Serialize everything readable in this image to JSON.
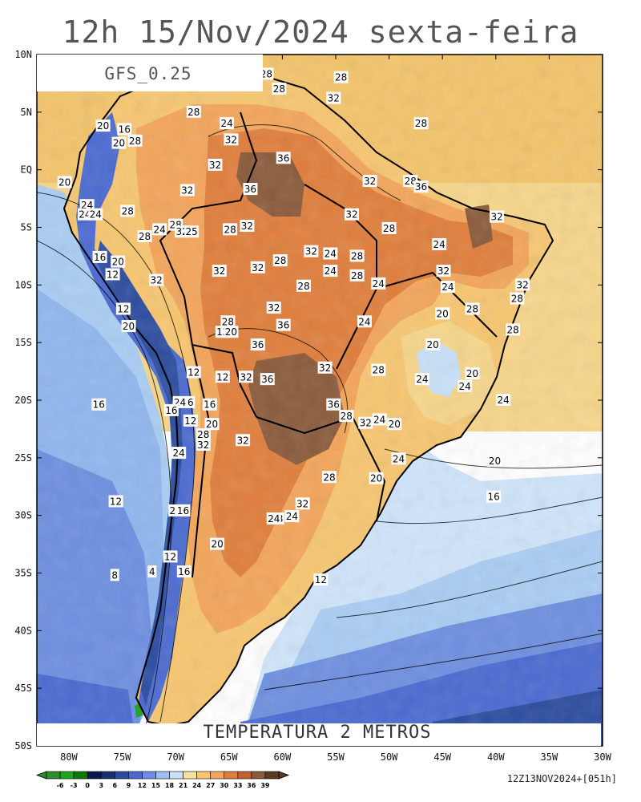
{
  "title": "12h 15/Nov/2024 sexta-feira",
  "model_label": "GFS_0.25",
  "variable_label": "TEMPERATURA 2 METROS",
  "run_label": "12Z13NOV2024+[051h]",
  "lat_ticks": [
    "10N",
    "5N",
    "EQ",
    "5S",
    "10S",
    "15S",
    "20S",
    "25S",
    "30S",
    "35S",
    "40S",
    "45S",
    "50S"
  ],
  "lon_ticks": [
    "80W",
    "75W",
    "70W",
    "65W",
    "60W",
    "55W",
    "50W",
    "45W",
    "40W",
    "35W",
    "30W"
  ],
  "colorbar": {
    "values": [
      "-6",
      "-3",
      "0",
      "3",
      "6",
      "9",
      "12",
      "15",
      "18",
      "21",
      "24",
      "27",
      "30",
      "33",
      "36",
      "39"
    ],
    "colors": [
      "#2e8b2e",
      "#1fa21f",
      "#0b7a0b",
      "#0a1a50",
      "#16306e",
      "#2b4c9e",
      "#4a6ad0",
      "#6f8ee6",
      "#9cc0f2",
      "#c8e0f8",
      "#f7e0a0",
      "#f7c670",
      "#f3a55a",
      "#e07e3c",
      "#c0622e",
      "#8a5a3a",
      "#5a3a20"
    ]
  },
  "contour_labels": [
    {
      "t": "28",
      "lon": -61.5,
      "lat": 8.3
    },
    {
      "t": "28",
      "lon": -54.5,
      "lat": 8.0
    },
    {
      "t": "28",
      "lon": -60.3,
      "lat": 7.0
    },
    {
      "t": "32",
      "lon": -55.2,
      "lat": 6.2
    },
    {
      "t": "28",
      "lon": -68.3,
      "lat": 5.0
    },
    {
      "t": "24",
      "lon": -65.2,
      "lat": 4.0
    },
    {
      "t": "20",
      "lon": -76.8,
      "lat": 3.8
    },
    {
      "t": "16",
      "lon": -74.8,
      "lat": 3.5
    },
    {
      "t": "20",
      "lon": -75.3,
      "lat": 2.3
    },
    {
      "t": "28",
      "lon": -73.8,
      "lat": 2.5
    },
    {
      "t": "32",
      "lon": -64.8,
      "lat": 2.6
    },
    {
      "t": "28",
      "lon": -47.0,
      "lat": 4.0
    },
    {
      "t": "36",
      "lon": -59.9,
      "lat": 1.0
    },
    {
      "t": "32",
      "lon": -66.3,
      "lat": 0.4
    },
    {
      "t": "20",
      "lon": -80.4,
      "lat": -1.1
    },
    {
      "t": "32",
      "lon": -51.8,
      "lat": -1.0
    },
    {
      "t": "28",
      "lon": -48.0,
      "lat": -1.0
    },
    {
      "t": "36",
      "lon": -47.0,
      "lat": -1.5
    },
    {
      "t": "32",
      "lon": -68.9,
      "lat": -1.8
    },
    {
      "t": "36",
      "lon": -63.0,
      "lat": -1.7
    },
    {
      "t": "24",
      "lon": -78.3,
      "lat": -3.1
    },
    {
      "t": "24",
      "lon": -78.5,
      "lat": -3.9
    },
    {
      "t": "24",
      "lon": -77.5,
      "lat": -3.9
    },
    {
      "t": "28",
      "lon": -74.5,
      "lat": -3.6
    },
    {
      "t": "32",
      "lon": -53.5,
      "lat": -3.9
    },
    {
      "t": "32",
      "lon": -39.9,
      "lat": -4.1
    },
    {
      "t": "28",
      "lon": -70.0,
      "lat": -4.8
    },
    {
      "t": "32",
      "lon": -63.3,
      "lat": -4.9
    },
    {
      "t": "28",
      "lon": -64.9,
      "lat": -5.2
    },
    {
      "t": "24",
      "lon": -71.5,
      "lat": -5.2
    },
    {
      "t": "32",
      "lon": -69.4,
      "lat": -5.4
    },
    {
      "t": "25",
      "lon": -68.5,
      "lat": -5.4
    },
    {
      "t": "28",
      "lon": -72.9,
      "lat": -5.8
    },
    {
      "t": "28",
      "lon": -50.0,
      "lat": -5.1
    },
    {
      "t": "24",
      "lon": -45.3,
      "lat": -6.5
    },
    {
      "t": "16",
      "lon": -77.1,
      "lat": -7.6
    },
    {
      "t": "32",
      "lon": -57.3,
      "lat": -7.1
    },
    {
      "t": "24",
      "lon": -55.5,
      "lat": -7.3
    },
    {
      "t": "28",
      "lon": -53.0,
      "lat": -7.5
    },
    {
      "t": "28",
      "lon": -60.2,
      "lat": -7.9
    },
    {
      "t": "20",
      "lon": -75.4,
      "lat": -8.0
    },
    {
      "t": "32",
      "lon": -62.3,
      "lat": -8.5
    },
    {
      "t": "24",
      "lon": -55.5,
      "lat": -8.8
    },
    {
      "t": "32",
      "lon": -65.9,
      "lat": -8.8
    },
    {
      "t": "32",
      "lon": -44.9,
      "lat": -8.8
    },
    {
      "t": "12",
      "lon": -75.9,
      "lat": -9.1
    },
    {
      "t": "28",
      "lon": -53.0,
      "lat": -9.2
    },
    {
      "t": "32",
      "lon": -71.8,
      "lat": -9.6
    },
    {
      "t": "24",
      "lon": -51.0,
      "lat": -9.9
    },
    {
      "t": "24",
      "lon": -44.5,
      "lat": -10.2
    },
    {
      "t": "32",
      "lon": -37.5,
      "lat": -10.0
    },
    {
      "t": "28",
      "lon": -58.0,
      "lat": -10.1
    },
    {
      "t": "28",
      "lon": -38.0,
      "lat": -11.2
    },
    {
      "t": "32",
      "lon": -60.8,
      "lat": -12.0
    },
    {
      "t": "12",
      "lon": -74.9,
      "lat": -12.1
    },
    {
      "t": "28",
      "lon": -42.2,
      "lat": -12.1
    },
    {
      "t": "20",
      "lon": -45.0,
      "lat": -12.5
    },
    {
      "t": "20",
      "lon": -74.4,
      "lat": -13.6
    },
    {
      "t": "24",
      "lon": -52.3,
      "lat": -13.2
    },
    {
      "t": "28",
      "lon": -65.1,
      "lat": -13.2
    },
    {
      "t": "36",
      "lon": -59.9,
      "lat": -13.5
    },
    {
      "t": "28",
      "lon": -38.4,
      "lat": -13.9
    },
    {
      "t": "12",
      "lon": -65.6,
      "lat": -14.1
    },
    {
      "t": "20",
      "lon": -64.8,
      "lat": -14.1
    },
    {
      "t": "36",
      "lon": -62.3,
      "lat": -15.2
    },
    {
      "t": "20",
      "lon": -45.9,
      "lat": -15.2
    },
    {
      "t": "32",
      "lon": -56.0,
      "lat": -17.2
    },
    {
      "t": "28",
      "lon": -51.0,
      "lat": -17.4
    },
    {
      "t": "12",
      "lon": -68.3,
      "lat": -17.6
    },
    {
      "t": "12",
      "lon": -65.6,
      "lat": -18.0
    },
    {
      "t": "32",
      "lon": -63.4,
      "lat": -18.0
    },
    {
      "t": "36",
      "lon": -61.4,
      "lat": -18.2
    },
    {
      "t": "24",
      "lon": -46.9,
      "lat": -18.2
    },
    {
      "t": "20",
      "lon": -42.2,
      "lat": -17.7
    },
    {
      "t": "24",
      "lon": -42.9,
      "lat": -18.8
    },
    {
      "t": "16",
      "lon": -77.2,
      "lat": -20.4
    },
    {
      "t": "24",
      "lon": -69.6,
      "lat": -20.2
    },
    {
      "t": "6",
      "lon": -68.6,
      "lat": -20.2
    },
    {
      "t": "16",
      "lon": -66.8,
      "lat": -20.4
    },
    {
      "t": "36",
      "lon": -55.2,
      "lat": -20.4
    },
    {
      "t": "24",
      "lon": -39.3,
      "lat": -20.0
    },
    {
      "t": "16",
      "lon": -70.4,
      "lat": -20.9
    },
    {
      "t": "12",
      "lon": -68.6,
      "lat": -21.8
    },
    {
      "t": "20",
      "lon": -66.6,
      "lat": -22.1
    },
    {
      "t": "28",
      "lon": -54.0,
      "lat": -21.4
    },
    {
      "t": "24",
      "lon": -50.9,
      "lat": -21.7
    },
    {
      "t": "32",
      "lon": -52.2,
      "lat": -22.0
    },
    {
      "t": "20",
      "lon": -49.5,
      "lat": -22.1
    },
    {
      "t": "28",
      "lon": -67.4,
      "lat": -23.0
    },
    {
      "t": "32",
      "lon": -67.4,
      "lat": -23.9
    },
    {
      "t": "32",
      "lon": -63.7,
      "lat": -23.5
    },
    {
      "t": "24",
      "lon": -69.7,
      "lat": -24.6
    },
    {
      "t": "24",
      "lon": -49.1,
      "lat": -25.1
    },
    {
      "t": "20",
      "lon": -40.1,
      "lat": -25.3
    },
    {
      "t": "28",
      "lon": -55.6,
      "lat": -26.7
    },
    {
      "t": "20",
      "lon": -51.2,
      "lat": -26.8
    },
    {
      "t": "16",
      "lon": -40.2,
      "lat": -28.4
    },
    {
      "t": "32",
      "lon": -58.1,
      "lat": -29.0
    },
    {
      "t": "12",
      "lon": -75.6,
      "lat": -28.8
    },
    {
      "t": "20",
      "lon": -70.0,
      "lat": -29.6
    },
    {
      "t": "16",
      "lon": -69.3,
      "lat": -29.6
    },
    {
      "t": "24",
      "lon": -59.1,
      "lat": -30.1
    },
    {
      "t": "28",
      "lon": -60.5,
      "lat": -30.3
    },
    {
      "t": "24",
      "lon": -60.8,
      "lat": -30.3
    },
    {
      "t": "20",
      "lon": -66.1,
      "lat": -32.5
    },
    {
      "t": "12",
      "lon": -70.5,
      "lat": -33.6
    },
    {
      "t": "16",
      "lon": -69.2,
      "lat": -34.9
    },
    {
      "t": "8",
      "lon": -75.7,
      "lat": -35.2
    },
    {
      "t": "4",
      "lon": -72.2,
      "lat": -34.9
    },
    {
      "t": "12",
      "lon": -56.4,
      "lat": -35.6
    }
  ]
}
